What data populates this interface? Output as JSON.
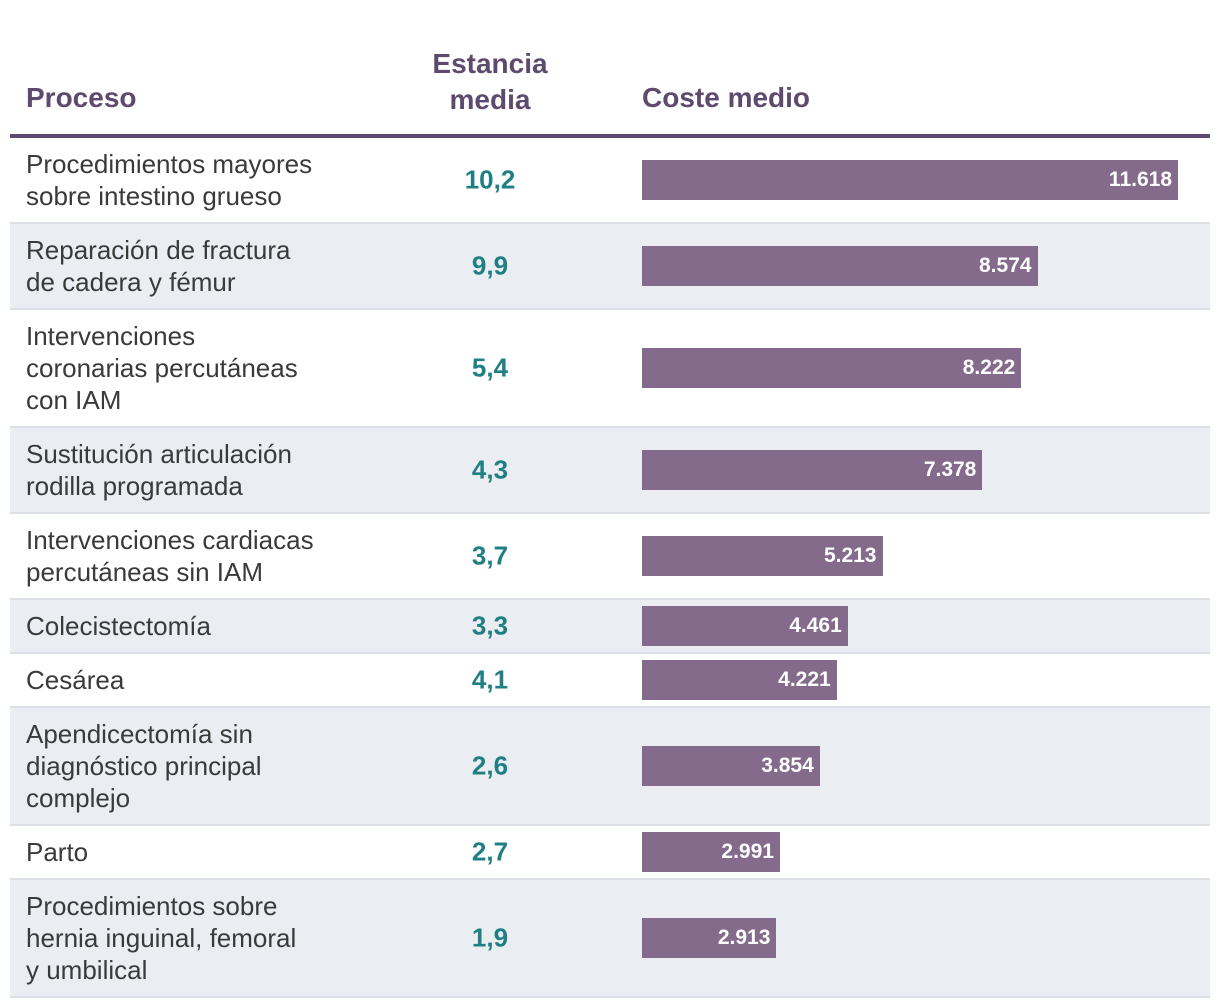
{
  "headers": {
    "proceso": "Proceso",
    "estancia": "Estancia\nmedia",
    "coste": "Coste medio"
  },
  "colors": {
    "bar": "#846b8c",
    "header": "#5e4a6e",
    "stay": "#1f7f82",
    "shade": "#eaedf2"
  },
  "chart_data": {
    "type": "bar",
    "orientation": "horizontal",
    "title": "",
    "xlabel": "Coste medio",
    "ylabel": "Proceso",
    "xlim": [
      0,
      11618
    ],
    "categories": [
      "Procedimientos mayores\nsobre intestino grueso",
      "Reparación de fractura\nde cadera y fémur",
      "Intervenciones\ncoronarias percutáneas\ncon IAM",
      "Sustitución articulación\nrodilla programada",
      "Intervenciones cardiacas\npercutáneas sin IAM",
      "Colecistectomía",
      "Cesárea",
      "Apendicectomía sin\ndiagnóstico principal\ncomplejo",
      "Parto",
      "Procedimientos sobre\nhernia inguinal, femoral\ny umbilical"
    ],
    "estancia_media": [
      "10,2",
      "9,9",
      "5,4",
      "4,3",
      "3,7",
      "3,3",
      "4,1",
      "2,6",
      "2,7",
      "1,9"
    ],
    "values": [
      11618,
      8574,
      8222,
      7378,
      5213,
      4461,
      4221,
      3854,
      2991,
      2913
    ],
    "value_labels": [
      "11.618",
      "8.574",
      "8.222",
      "7.378",
      "5.213",
      "4.461",
      "4.221",
      "3.854",
      "2.991",
      "2.913"
    ]
  }
}
